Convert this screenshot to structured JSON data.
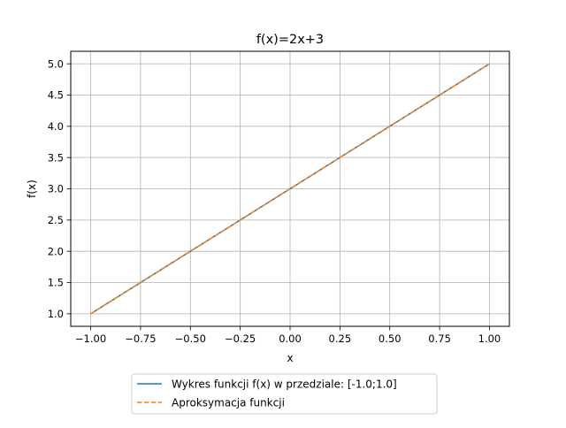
{
  "chart_data": {
    "type": "line",
    "title": "f(x)=2x+3",
    "xlabel": "x",
    "ylabel": "f(x)",
    "xlim": [
      -1.1,
      1.1
    ],
    "ylim": [
      0.8,
      5.2
    ],
    "grid": true,
    "legend_placement": "bottom-center outside",
    "x_ticks": [
      -1.0,
      -0.75,
      -0.5,
      -0.25,
      0.0,
      0.25,
      0.5,
      0.75,
      1.0
    ],
    "x_tick_labels": [
      "−1.00",
      "−0.75",
      "−0.50",
      "−0.25",
      "0.00",
      "0.25",
      "0.50",
      "0.75",
      "1.00"
    ],
    "y_ticks": [
      1.0,
      1.5,
      2.0,
      2.5,
      3.0,
      3.5,
      4.0,
      4.5,
      5.0
    ],
    "y_tick_labels": [
      "1.0",
      "1.5",
      "2.0",
      "2.5",
      "3.0",
      "3.5",
      "4.0",
      "4.5",
      "5.0"
    ],
    "series": [
      {
        "name": "Wykres funkcji f(x) w przedziale: [-1.0;1.0]",
        "color": "#1f77b4",
        "style": "solid",
        "x": [
          -1.0,
          1.0
        ],
        "y": [
          1.0,
          5.0
        ]
      },
      {
        "name": "Aproksymacja funkcji",
        "color": "#ff7f0e",
        "style": "dashed",
        "x": [
          -1.0,
          1.0
        ],
        "y": [
          1.0,
          5.0
        ]
      }
    ]
  }
}
